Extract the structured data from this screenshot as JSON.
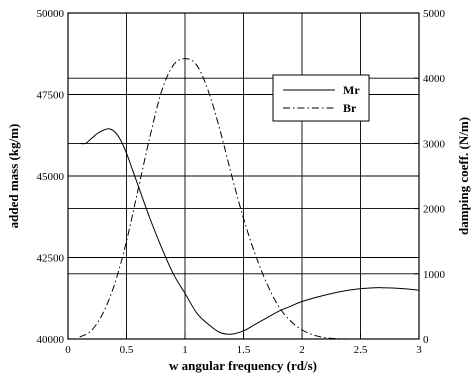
{
  "chart_data": {
    "type": "line",
    "title": "",
    "xlabel": "w  angular frequency  (rd/s)",
    "ylabel_left": "added mass  (kg/m)",
    "ylabel_right": "damping coeff.  (N/m)",
    "xlim": [
      0,
      3
    ],
    "ylim_left": [
      40000,
      50000
    ],
    "ylim_right": [
      0,
      5000
    ],
    "x_ticks": [
      "0",
      "0.5",
      "1",
      "1.5",
      "2",
      "2.5",
      "3"
    ],
    "y_left_ticks": [
      "40000",
      "42500",
      "45000",
      "47500",
      "50000"
    ],
    "y_right_ticks": [
      "0",
      "1000",
      "2000",
      "3000",
      "4000",
      "5000"
    ],
    "grid": true,
    "legend_position": "top-right",
    "series": [
      {
        "name": "Mr",
        "axis": "left",
        "style": "solid",
        "x": [
          0.1,
          0.15,
          0.2,
          0.25,
          0.3,
          0.35,
          0.4,
          0.45,
          0.5,
          0.55,
          0.6,
          0.7,
          0.8,
          0.9,
          1.0,
          1.1,
          1.2,
          1.3,
          1.4,
          1.5,
          1.6,
          1.7,
          1.8,
          1.9,
          2.0,
          2.2,
          2.4,
          2.6,
          2.8,
          3.0
        ],
        "values": [
          46000,
          46000,
          46150,
          46300,
          46400,
          46450,
          46350,
          46100,
          45700,
          45200,
          44700,
          43700,
          42800,
          42000,
          41400,
          40800,
          40450,
          40200,
          40150,
          40250,
          40450,
          40650,
          40850,
          41000,
          41150,
          41350,
          41500,
          41570,
          41560,
          41500
        ]
      },
      {
        "name": "Br",
        "axis": "right",
        "style": "dashdot",
        "x": [
          0.1,
          0.2,
          0.3,
          0.4,
          0.5,
          0.6,
          0.7,
          0.8,
          0.9,
          1.0,
          1.1,
          1.2,
          1.3,
          1.4,
          1.5,
          1.6,
          1.7,
          1.8,
          1.9,
          2.0,
          2.1,
          2.2,
          2.3,
          2.4,
          2.5
        ],
        "values": [
          30,
          130,
          400,
          850,
          1500,
          2300,
          3100,
          3800,
          4200,
          4300,
          4200,
          3800,
          3200,
          2500,
          1850,
          1300,
          850,
          500,
          280,
          140,
          60,
          20,
          5,
          0,
          0
        ]
      }
    ]
  }
}
